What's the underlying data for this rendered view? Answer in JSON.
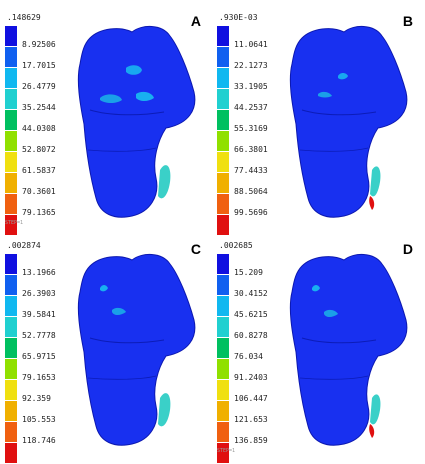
{
  "colors": [
    "#1010e0",
    "#1060f0",
    "#10b8f0",
    "#20d0d0",
    "#00c060",
    "#90e000",
    "#f0e010",
    "#f0b000",
    "#f06010",
    "#e01010"
  ],
  "panels": [
    {
      "letter": "A",
      "top_value": ".148629",
      "levels": [
        "8.92506",
        "17.7015",
        "26.4779",
        "35.2544",
        "44.0308",
        "52.8072",
        "61.5837",
        "70.3601",
        "79.1365"
      ],
      "footer": "STEP=1"
    },
    {
      "letter": "B",
      "top_value": ".930E-03",
      "levels": [
        "11.0641",
        "22.1273",
        "33.1905",
        "44.2537",
        "55.3169",
        "66.3801",
        "77.4433",
        "88.5064",
        "99.5696"
      ],
      "footer": ""
    },
    {
      "letter": "C",
      "top_value": ".002874",
      "levels": [
        "13.1966",
        "26.3903",
        "39.5841",
        "52.7778",
        "65.9715",
        "79.1653",
        "92.359",
        "105.553",
        "118.746"
      ],
      "footer": ""
    },
    {
      "letter": "D",
      "top_value": ".002685",
      "levels": [
        "15.209",
        "30.4152",
        "45.6215",
        "60.8278",
        "76.034",
        "91.2403",
        "106.447",
        "121.653",
        "136.859"
      ],
      "footer": "STEP=1"
    }
  ]
}
